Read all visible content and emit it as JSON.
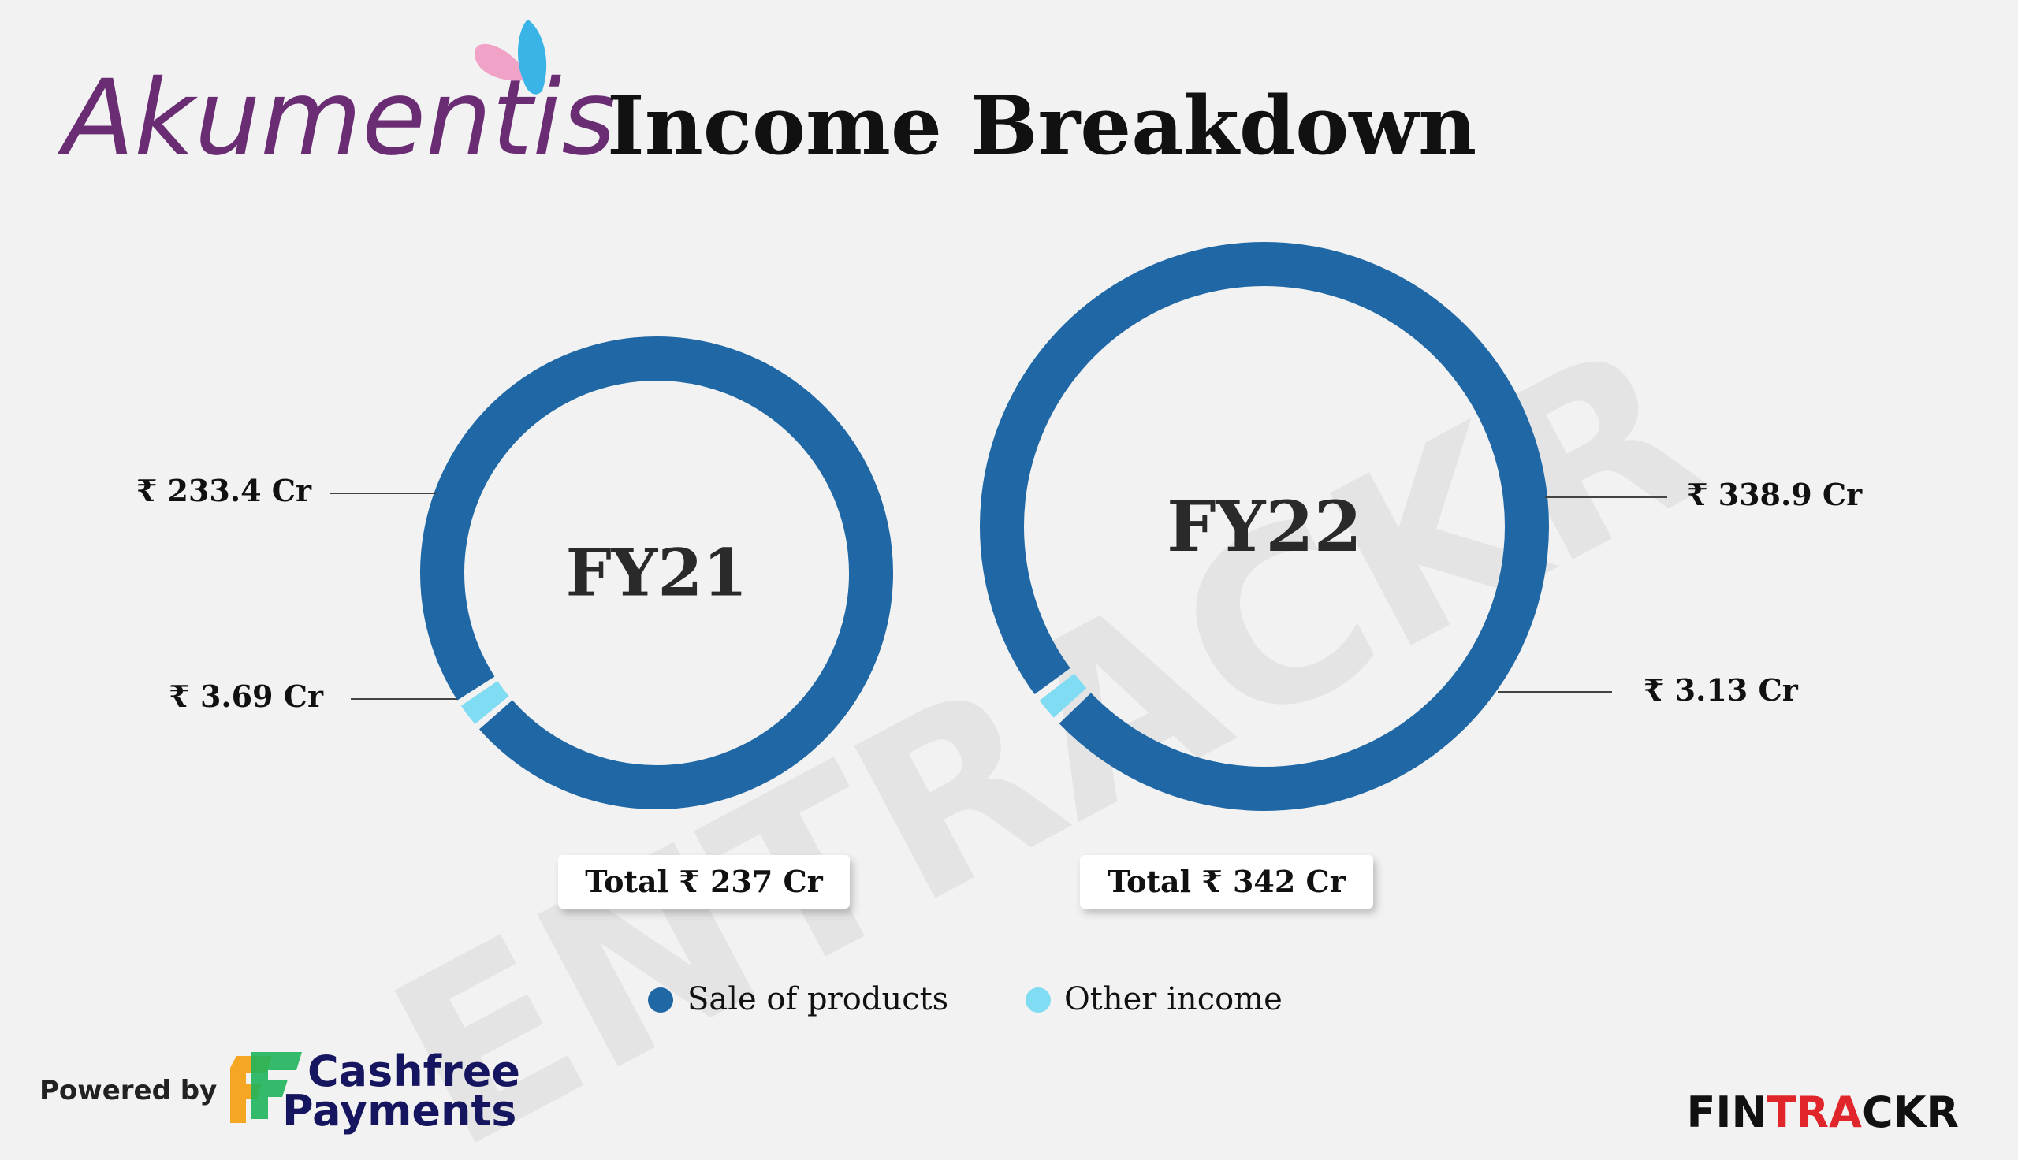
{
  "brand": {
    "company_logo_text": "Akumentis",
    "powered_by": "Powered by",
    "sponsor_line1": "Cashfree",
    "sponsor_line2": "Payments",
    "publisher": "FINTRACKR",
    "watermark": "ENTRACKR"
  },
  "colors": {
    "sale_of_products": "#1f67a5",
    "other_income": "#7fdcf3",
    "background": "#f2f2f2",
    "logo_purple": "#6a2c73",
    "publisher_red": "#e0262b",
    "sponsor_navy": "#15165f"
  },
  "chart_data": {
    "type": "pie",
    "title": "Income Breakdown",
    "unit": "Cr",
    "currency": "₹",
    "legend": {
      "placement": "bottom",
      "entries": [
        "Sale of products",
        "Other income"
      ]
    },
    "charts": [
      {
        "center_label": "FY21",
        "total_label": "Total ₹ 237 Cr",
        "slices": [
          {
            "name": "Sale of products",
            "value": 233.4,
            "label": "₹ 233.4 Cr"
          },
          {
            "name": "Other income",
            "value": 3.69,
            "label": "₹ 3.69 Cr"
          }
        ]
      },
      {
        "center_label": "FY22",
        "total_label": "Total ₹ 342 Cr",
        "slices": [
          {
            "name": "Sale of products",
            "value": 338.9,
            "label": "₹ 338.9 Cr"
          },
          {
            "name": "Other income",
            "value": 3.13,
            "label": "₹ 3.13 Cr"
          }
        ]
      }
    ]
  }
}
